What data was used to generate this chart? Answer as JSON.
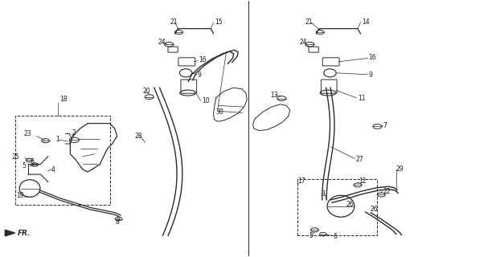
{
  "bg_color": "#ffffff",
  "line_color": "#2a2a2a",
  "text_color": "#1a1a1a",
  "fig_width": 6.17,
  "fig_height": 3.2,
  "dpi": 100
}
